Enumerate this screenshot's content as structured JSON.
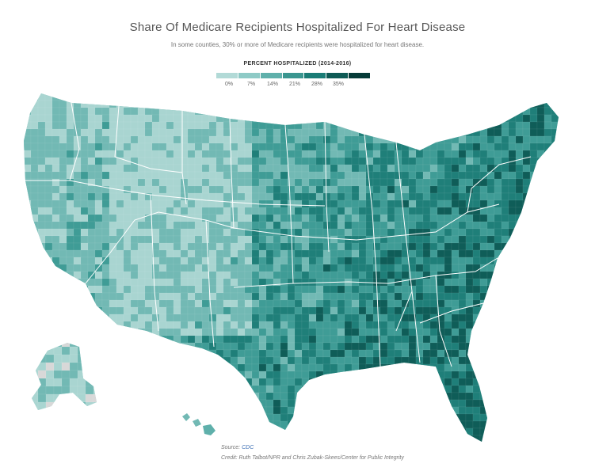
{
  "header": {
    "title": "Share Of Medicare Recipients Hospitalized For Heart Disease",
    "subtitle": "In some counties, 30% or more of Medicare recipients were hospitalized for heart disease."
  },
  "legend": {
    "title": "PERCENT HOSPITALIZED (2014-2016)",
    "ticks": [
      "0%",
      "7%",
      "14%",
      "21%",
      "28%",
      "35%"
    ],
    "colors": [
      "#b2dad7",
      "#8ecac6",
      "#5fb0ab",
      "#3a9690",
      "#1a7c76",
      "#0e5a55",
      "#063b38"
    ]
  },
  "map": {
    "region": "United States counties",
    "colors": {
      "light": "#a9d5d1",
      "mid": "#72b9b4",
      "dark": "#3f9c96",
      "darker": "#1f7f79",
      "darkest": "#0f5d58",
      "state_border": "#ffffff",
      "no_data": "#d8d8d8"
    }
  },
  "footer": {
    "source_label": "Source:",
    "source_link": "CDC",
    "credit": "Credit: Ruth Talbot/NPR and Chris Zubak-Skees/Center for Public Integrity"
  }
}
